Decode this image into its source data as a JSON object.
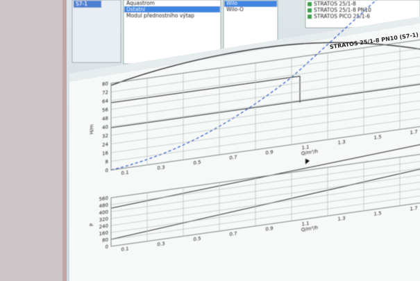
{
  "sidebar": {
    "code": "S7-1"
  },
  "lists": {
    "medium": [
      "Aquastrom",
      "Ostatní",
      "Modul přednostního výtap"
    ],
    "brand": [
      "Wilo",
      "Wilo-O"
    ],
    "results": [
      "STRATOS 25/1-8",
      "STRATOS 25/1-8 PN10",
      "STRATOS PICO 25/1-6"
    ]
  },
  "chart": {
    "title": "STRATOS 25/1-8 PN10 (S7-1)",
    "upper": {
      "y_label": "H/m",
      "x_label": "Q/m³/h",
      "yticks": [
        80,
        72,
        64,
        56,
        48,
        40,
        32,
        24,
        16,
        8,
        0
      ],
      "xticks": [
        0.1,
        0.3,
        0.5,
        0.7,
        0.9,
        1.1,
        1.3,
        1.5,
        1.7,
        1.9
      ]
    },
    "lower": {
      "y_label": "P",
      "x_label": "Q/m³/h",
      "yticks": [
        560,
        480,
        400,
        320,
        240,
        160,
        80,
        0
      ],
      "xticks": [
        0.1,
        0.3,
        0.5,
        0.7,
        0.9,
        1.1,
        1.3,
        1.5,
        1.7,
        1.9
      ]
    }
  }
}
